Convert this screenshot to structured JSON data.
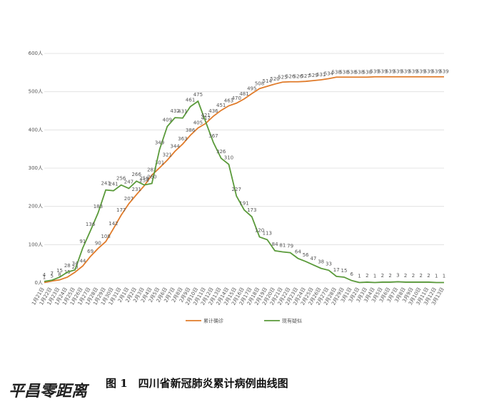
{
  "chart_data": {
    "type": "line",
    "categories": [
      "1月21日",
      "1月22日",
      "1月23日",
      "1月24日",
      "1月25日",
      "1月26日",
      "1月27日",
      "1月28日",
      "1月29日",
      "1月30日",
      "1月31日",
      "2月1日",
      "2月2日",
      "2月3日",
      "2月4日",
      "2月5日",
      "2月6日",
      "2月7日",
      "2月8日",
      "2月9日",
      "2月10日",
      "2月11日",
      "2月12日",
      "2月13日",
      "2月14日",
      "2月15日",
      "2月16日",
      "2月17日",
      "2月18日",
      "2月19日",
      "2月20日",
      "2月21日",
      "2月22日",
      "2月23日",
      "2月24日",
      "2月25日",
      "2月26日",
      "2月27日",
      "2月28日",
      "2月29日",
      "3月1日",
      "3月2日",
      "3月3日",
      "3月4日",
      "3月5日",
      "3月6日",
      "3月7日",
      "3月8日",
      "3月9日",
      "3月10日",
      "3月11日",
      "3月12日",
      "3月13日"
    ],
    "series": [
      {
        "name": "累计确诊",
        "color": "#e07b2a",
        "values": [
          1,
          5,
          8,
          15,
          28,
          44,
          69,
          90,
          108,
          142,
          177,
          207,
          231,
          254,
          282,
          301,
          321,
          344,
          363,
          386,
          405,
          417,
          436,
          451,
          463,
          470,
          481,
          495,
          508,
          514,
          520,
          525,
          526,
          526,
          527,
          529,
          531,
          534,
          538,
          538,
          538,
          538,
          538,
          539,
          539,
          539,
          539,
          539,
          539,
          539,
          539,
          539,
          539
        ]
      },
      {
        "name": "现有疑似",
        "color": "#5a9a3a",
        "values": [
          4,
          7,
          15,
          28,
          34,
          91,
          136,
          183,
          243,
          241,
          256,
          247,
          266,
          256,
          260,
          349,
          409,
          432,
          431,
          461,
          475,
          421,
          367,
          326,
          310,
          227,
          191,
          173,
          120,
          113,
          84,
          81,
          79,
          64,
          56,
          47,
          38,
          33,
          17,
          15,
          6,
          1,
          2,
          1,
          2,
          2,
          3,
          2,
          2,
          2,
          2,
          1,
          1
        ]
      }
    ],
    "ylim": [
      0,
      600
    ],
    "yticks": [
      {
        "value": 0,
        "label": "0人"
      },
      {
        "value": 100,
        "label": "100人"
      },
      {
        "value": 200,
        "label": "200人"
      },
      {
        "value": 300,
        "label": "300人"
      },
      {
        "value": 400,
        "label": "400人"
      },
      {
        "value": 500,
        "label": "500人"
      },
      {
        "value": 600,
        "label": "600人"
      }
    ],
    "grid": true,
    "legend": "bottom",
    "caption": "图 1　四川省新冠肺炎累计病例曲线图",
    "watermark": "平昌零距离"
  }
}
